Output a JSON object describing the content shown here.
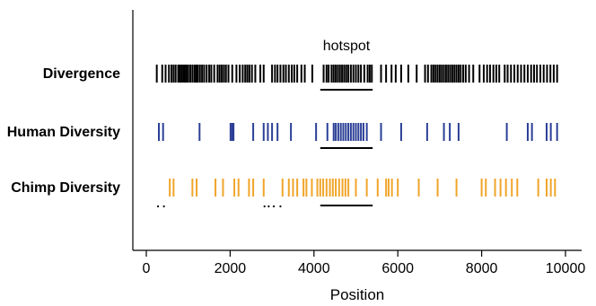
{
  "chart_data": {
    "type": "scatter",
    "title": "",
    "xlabel": "Position",
    "ylabel": "",
    "xlim": [
      -200,
      10300
    ],
    "x_ticks": [
      0,
      2000,
      4000,
      6000,
      8000,
      10000
    ],
    "x_tick_labels": [
      "0",
      "2000",
      "4000",
      "6000",
      "8000",
      "10000"
    ],
    "grid": false,
    "annotation": {
      "text": "hotspot",
      "x_range": [
        4150,
        5400
      ]
    },
    "series": [
      {
        "name": "Divergence",
        "color": "#000000",
        "positions": [
          250,
          380,
          460,
          540,
          600,
          650,
          700,
          760,
          800,
          840,
          880,
          920,
          960,
          1000,
          1050,
          1100,
          1150,
          1190,
          1230,
          1280,
          1330,
          1380,
          1440,
          1500,
          1550,
          1620,
          1700,
          1750,
          1800,
          1850,
          1900,
          1960,
          2050,
          2150,
          2230,
          2300,
          2360,
          2410,
          2460,
          2520,
          2600,
          2720,
          2800,
          3000,
          3070,
          3130,
          3200,
          3270,
          3330,
          3400,
          3470,
          3530,
          3600,
          3700,
          3780,
          3960,
          4230,
          4300,
          4350,
          4420,
          4470,
          4520,
          4570,
          4620,
          4670,
          4720,
          4770,
          4820,
          4880,
          4940,
          5000,
          5060,
          5120,
          5200,
          5280,
          5330,
          5380,
          5600,
          5720,
          5850,
          5950,
          6080,
          6250,
          6450,
          6650,
          6720,
          6800,
          6850,
          6900,
          6950,
          7000,
          7050,
          7100,
          7150,
          7200,
          7250,
          7300,
          7350,
          7400,
          7450,
          7500,
          7560,
          7620,
          7700,
          7800,
          7950,
          8050,
          8130,
          8200,
          8280,
          8350,
          8420,
          8550,
          8620,
          8700,
          8780,
          8860,
          8940,
          9020,
          9100,
          9180,
          9250,
          9320,
          9400,
          9480,
          9560,
          9640,
          9720,
          9800
        ]
      },
      {
        "name": "Human Diversity",
        "color": "#2b3f96",
        "positions": [
          300,
          400,
          1270,
          2010,
          2050,
          2080,
          2550,
          2800,
          2900,
          3000,
          3130,
          3450,
          4050,
          4320,
          4470,
          4520,
          4580,
          4640,
          4700,
          4760,
          4820,
          4880,
          4940,
          5000,
          5060,
          5120,
          5180,
          5260,
          5600,
          6080,
          6700,
          7100,
          7240,
          7450,
          8600,
          9100,
          9200,
          9550,
          9650,
          9800
        ]
      },
      {
        "name": "Chimp Diversity",
        "color": "#f0a52a",
        "positions": [
          560,
          650,
          1100,
          1200,
          1650,
          1830,
          2100,
          2200,
          2450,
          2550,
          2800,
          3250,
          3400,
          3500,
          3600,
          3750,
          3820,
          3950,
          4080,
          4150,
          4220,
          4300,
          4380,
          4450,
          4520,
          4600,
          4680,
          4750,
          4820,
          5000,
          5260,
          5520,
          5720,
          5780,
          5860,
          6000,
          6500,
          6950,
          7400,
          8000,
          8100,
          8320,
          8450,
          8580,
          8720,
          8850,
          9350,
          9550,
          9650,
          9750
        ]
      }
    ],
    "extra_dots": [
      {
        "x": 280,
        "color": "#000000"
      },
      {
        "x": 420,
        "color": "#000000"
      },
      {
        "x": 2820,
        "color": "#000000"
      },
      {
        "x": 2920,
        "color": "#000000"
      },
      {
        "x": 3040,
        "color": "#000000"
      },
      {
        "x": 3200,
        "color": "#000000"
      }
    ]
  }
}
